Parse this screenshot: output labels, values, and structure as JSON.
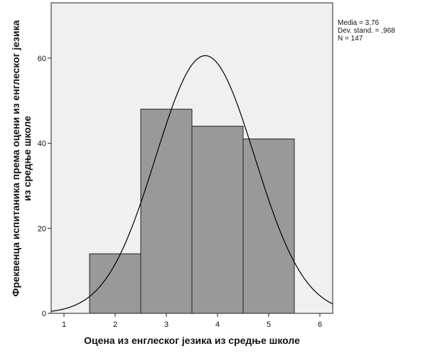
{
  "chart_data": {
    "type": "histogram",
    "xlabel": "Оцена из енглеског језика из средње школе",
    "ylabel_lines": [
      "Фреквенца испитаника према оцени из енглеског језика",
      "из средње школе"
    ],
    "xlim": [
      0.75,
      6.25
    ],
    "ylim": [
      0,
      73
    ],
    "x_ticks": [
      1,
      2,
      3,
      4,
      5,
      6
    ],
    "x_tick_labels": [
      "1",
      "2",
      "3",
      "4",
      "5",
      "6"
    ],
    "y_ticks": [
      0,
      20,
      40,
      60
    ],
    "y_tick_labels": [
      "0",
      "20",
      "40",
      "60"
    ],
    "bins": [
      {
        "x": 2,
        "value": 14
      },
      {
        "x": 3,
        "value": 48
      },
      {
        "x": 4,
        "value": 44
      },
      {
        "x": 5,
        "value": 41
      }
    ],
    "bin_width": 1,
    "normal_curve": {
      "mean": 3.76,
      "sd": 0.968,
      "n": 147
    },
    "stats_lines": [
      "Media = 3,76",
      "Dev. stand. = ,968",
      "N = 147"
    ],
    "colors": {
      "plot_background": "#f0f0f0",
      "bar_fill": "#999999",
      "bar_stroke": "#222222",
      "curve": "#000000",
      "axis": "#222222",
      "text": "#111111"
    },
    "grid": false,
    "legend": "none"
  }
}
